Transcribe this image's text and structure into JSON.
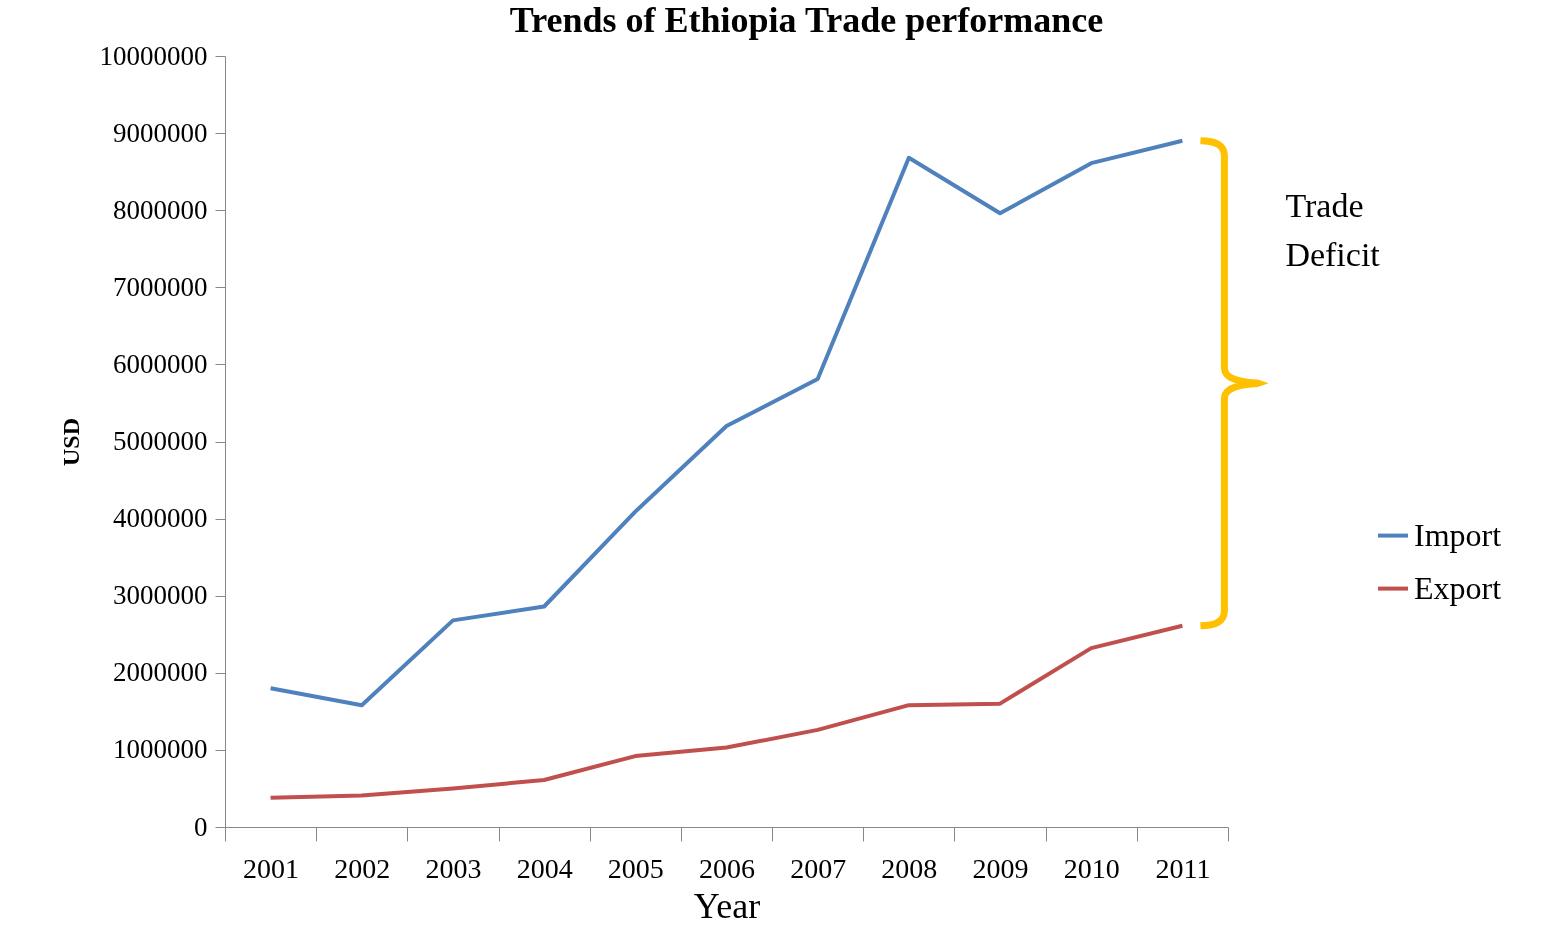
{
  "chart_data": {
    "type": "line",
    "title": "Trends of Ethiopia Trade performance",
    "xlabel": "Year",
    "ylabel": "USD",
    "categories": [
      "2001",
      "2002",
      "2003",
      "2004",
      "2005",
      "2006",
      "2007",
      "2008",
      "2009",
      "2010",
      "2011"
    ],
    "series": [
      {
        "name": "Import",
        "color": "#4f81bd",
        "values": [
          1800000,
          1580000,
          2680000,
          2860000,
          4090000,
          5200000,
          5810000,
          8680000,
          7960000,
          8610000,
          8900000
        ]
      },
      {
        "name": "Export",
        "color": "#c0504d",
        "values": [
          380000,
          410000,
          500000,
          610000,
          920000,
          1030000,
          1260000,
          1580000,
          1600000,
          2320000,
          2610000
        ]
      }
    ],
    "ylim": [
      0,
      10000000
    ],
    "yticks": [
      0,
      1000000,
      2000000,
      3000000,
      4000000,
      5000000,
      6000000,
      7000000,
      8000000,
      9000000,
      10000000
    ],
    "legend": "right",
    "annotations": [
      "Trade Deficit"
    ]
  }
}
